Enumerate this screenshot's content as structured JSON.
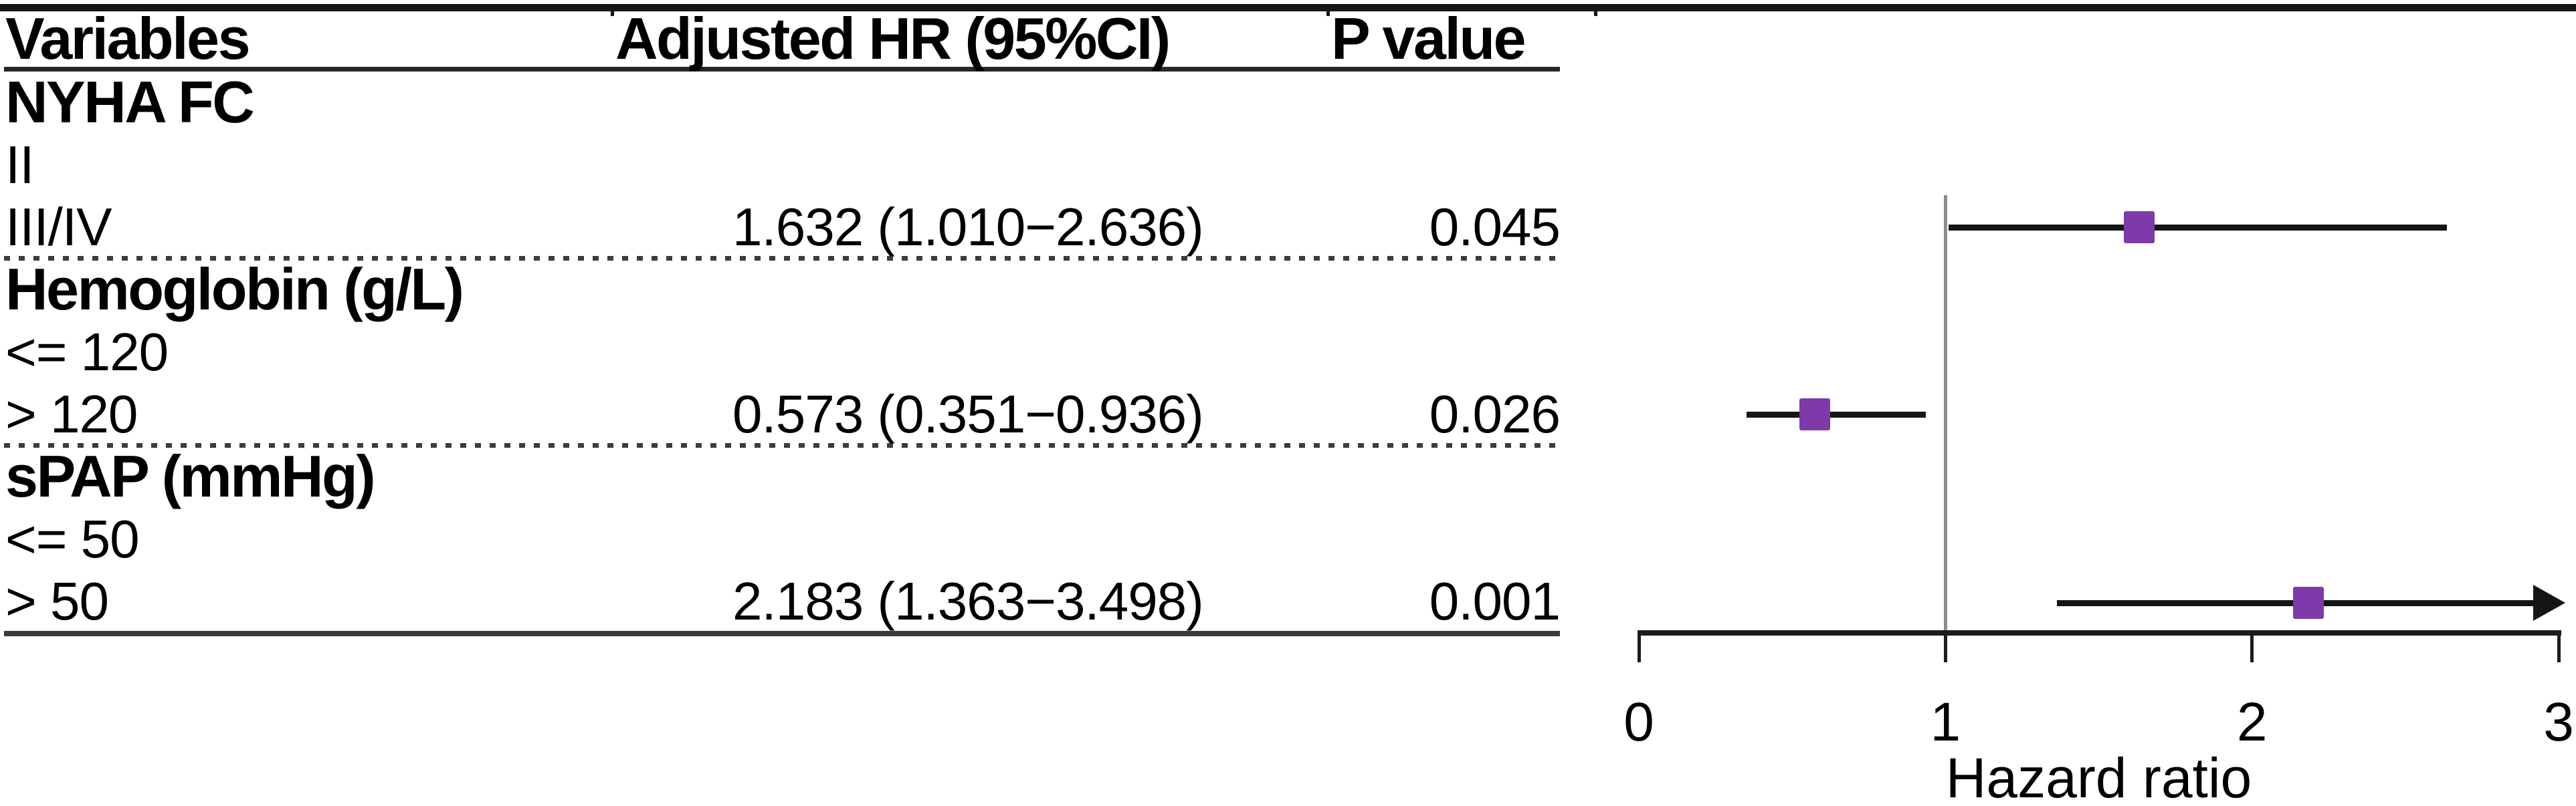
{
  "table": {
    "headers": {
      "variables": "Variables",
      "hr": "Adjusted HR (95%CI)",
      "p": "P value"
    },
    "rows": [
      {
        "label": "NYHA FC",
        "bold": true,
        "hr": "",
        "p": ""
      },
      {
        "label": "II",
        "bold": false,
        "hr": "",
        "p": ""
      },
      {
        "label": "III/IV",
        "bold": false,
        "hr": "1.632 (1.010−2.636)",
        "p": "0.045"
      },
      {
        "label": "Hemoglobin (g/L)",
        "bold": true,
        "hr": "",
        "p": ""
      },
      {
        "label": "<= 120",
        "bold": false,
        "hr": "",
        "p": ""
      },
      {
        "label": "> 120",
        "bold": false,
        "hr": "0.573 (0.351−0.936)",
        "p": "0.026"
      },
      {
        "label": "sPAP (mmHg)",
        "bold": true,
        "hr": "",
        "p": ""
      },
      {
        "label": "<= 50",
        "bold": false,
        "hr": "",
        "p": ""
      },
      {
        "label": "> 50",
        "bold": false,
        "hr": "2.183 (1.363−3.498)",
        "p": "0.001"
      }
    ]
  },
  "chart_data": {
    "type": "scatter",
    "subtype": "forest-plot",
    "xlabel": "Hazard ratio",
    "xlim": [
      0,
      3
    ],
    "xticks": [
      "0",
      "1",
      "2",
      "3"
    ],
    "reference_line": 1,
    "marker_color": "#7e3aa8",
    "line_color": "#151515",
    "points": [
      {
        "label": "NYHA FC III/IV",
        "hr": 1.632,
        "lower": 1.01,
        "upper": 2.636,
        "p": 0.045,
        "clipped_right": false
      },
      {
        "label": "Hemoglobin (g/L) > 120",
        "hr": 0.573,
        "lower": 0.351,
        "upper": 0.936,
        "p": 0.026,
        "clipped_right": false
      },
      {
        "label": "sPAP (mmHg) > 50",
        "hr": 2.183,
        "lower": 1.363,
        "upper": 3.498,
        "p": 0.001,
        "clipped_right": true
      }
    ]
  }
}
